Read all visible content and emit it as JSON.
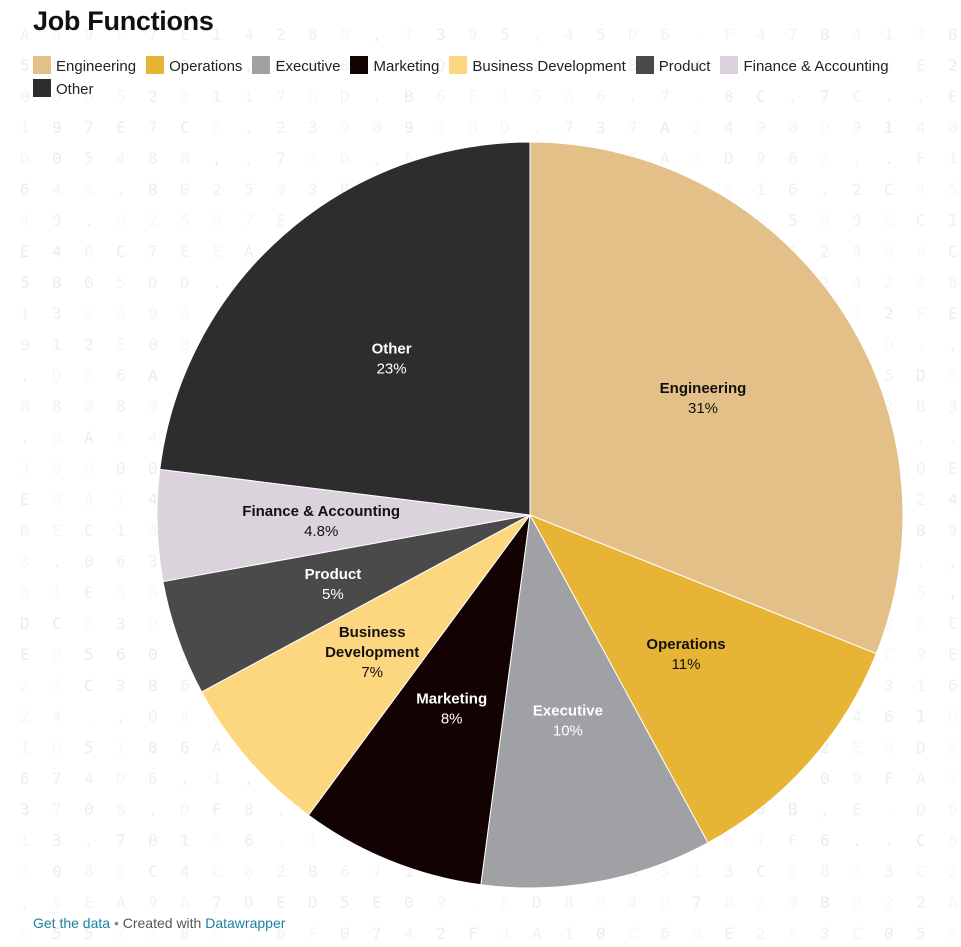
{
  "chart_data": {
    "type": "pie",
    "title": "Job Functions",
    "categories": [
      "Engineering",
      "Operations",
      "Executive",
      "Marketing",
      "Business Development",
      "Product",
      "Finance & Accounting",
      "Other"
    ],
    "values": [
      31,
      11,
      10,
      8,
      7,
      5,
      4.8,
      23
    ],
    "value_labels": [
      "31%",
      "11%",
      "10%",
      "8%",
      "7%",
      "5%",
      "4.8%",
      "23%"
    ],
    "slice_label_lines": [
      [
        "Engineering"
      ],
      [
        "Operations"
      ],
      [
        "Executive"
      ],
      [
        "Marketing"
      ],
      [
        "Business",
        "Development"
      ],
      [
        "Product"
      ],
      [
        "Finance & Accounting"
      ],
      [
        "Other"
      ]
    ],
    "colors": [
      "#e3c088",
      "#e8b436",
      "#a0a1a5",
      "#120202",
      "#fdd680",
      "#4a4a4a",
      "#dad3dc",
      "#2d2d2d"
    ],
    "label_colors": [
      "#111111",
      "#111111",
      "#ffffff",
      "#ffffff",
      "#111111",
      "#ffffff",
      "#111111",
      "#ffffff"
    ],
    "start_angle_deg": 0,
    "direction": "clockwise",
    "legend": {
      "placement": "top",
      "items": [
        "Engineering",
        "Operations",
        "Executive",
        "Marketing",
        "Business Development",
        "Product",
        "Finance & Accounting",
        "Other"
      ]
    }
  },
  "footer": {
    "get_data": "Get the data",
    "separator": "•",
    "created_with": "Created with",
    "tool": "Datawrapper"
  }
}
